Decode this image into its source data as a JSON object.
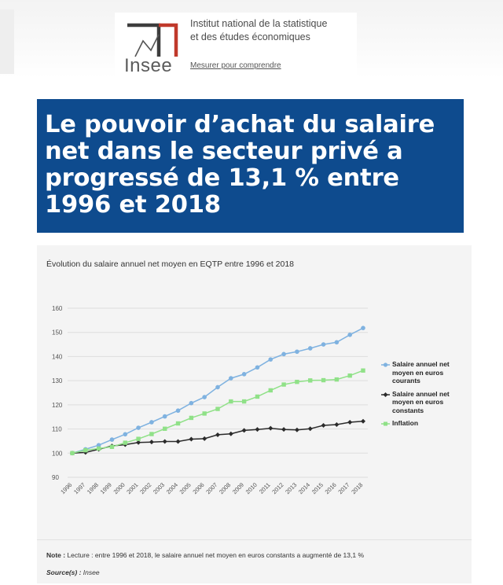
{
  "header": {
    "logo_word": "Insee",
    "org_line1": "Institut national de la statistique",
    "org_line2": "et des études économiques",
    "tagline": "Mesurer pour comprendre"
  },
  "headline": "Le pouvoir d’achat du salaire net dans le secteur privé a progressé de 13,1 % entre 1996 et 2018",
  "chart_data": {
    "type": "line",
    "title": "Évolution du salaire annuel net moyen en EQTP entre 1996 et 2018",
    "x": [
      "1996",
      "1997",
      "1998",
      "1999",
      "2000",
      "2001",
      "2002",
      "2003",
      "2004",
      "2005",
      "2006",
      "2007",
      "2008",
      "2009",
      "2010",
      "2011",
      "2012",
      "2013",
      "2014",
      "2015",
      "2016",
      "2017",
      "2018"
    ],
    "ylim": [
      90,
      160
    ],
    "yticks": [
      "90",
      "100",
      "110",
      "120",
      "130",
      "140",
      "150",
      "160"
    ],
    "grid": true,
    "legend_position": "right",
    "series": [
      {
        "name": "Salaire annuel net moyen en euros courants",
        "color": "#7fb2e0",
        "marker": "circle",
        "values": [
          100,
          101.6,
          103.3,
          105.6,
          107.8,
          110.5,
          112.8,
          115.2,
          117.6,
          120.7,
          123.2,
          127.3,
          131.0,
          132.7,
          135.5,
          138.8,
          141.0,
          142.0,
          143.4,
          145.0,
          145.9,
          149.0,
          151.8
        ]
      },
      {
        "name": "Salaire annuel net moyen en euros constants",
        "color": "#2b2b2b",
        "marker": "diamond",
        "values": [
          100,
          100.3,
          101.6,
          103.0,
          103.5,
          104.4,
          104.6,
          104.8,
          104.8,
          105.8,
          106.0,
          107.6,
          108.0,
          109.4,
          109.8,
          110.3,
          109.8,
          109.6,
          110.1,
          111.5,
          111.8,
          112.8,
          113.2
        ]
      },
      {
        "name": "Inflation",
        "color": "#90e188",
        "marker": "square",
        "values": [
          100,
          101.2,
          101.9,
          102.6,
          104.3,
          105.9,
          107.9,
          110.1,
          112.3,
          114.6,
          116.4,
          118.3,
          121.4,
          121.4,
          123.4,
          126.0,
          128.4,
          129.5,
          130.1,
          130.2,
          130.5,
          132.1,
          134.2
        ]
      }
    ]
  },
  "note": {
    "label": "Note :",
    "text": " Lecture : entre 1996 et 2018, le salaire annuel net moyen en euros constants a augmenté de 13,1 %"
  },
  "source": {
    "label": "Source(s) :",
    "text": " Insee"
  }
}
